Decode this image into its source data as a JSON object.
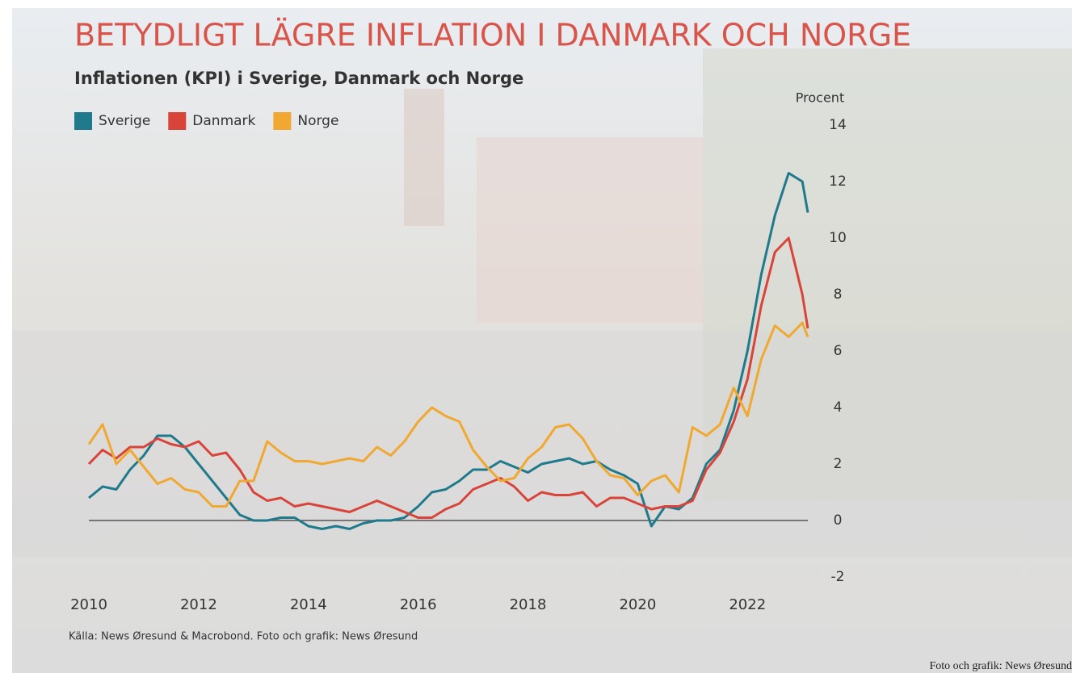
{
  "chart_data": {
    "type": "line",
    "title": "BETYDLIGT LÄGRE INFLATION I DANMARK OCH NORGE",
    "subtitle": "Inflationen (KPI) i Sverige, Danmark och Norge",
    "y_axis_label": "Procent",
    "source": "Källa: News Øresund & Macrobond. Foto och grafik: News Øresund",
    "credit": "Foto och grafik: News Øresund",
    "x": [
      2010,
      2010.25,
      2010.5,
      2010.75,
      2011,
      2011.25,
      2011.5,
      2011.75,
      2012,
      2012.25,
      2012.5,
      2012.75,
      2013,
      2013.25,
      2013.5,
      2013.75,
      2014,
      2014.25,
      2014.5,
      2014.75,
      2015,
      2015.25,
      2015.5,
      2015.75,
      2016,
      2016.25,
      2016.5,
      2016.75,
      2017,
      2017.25,
      2017.5,
      2017.75,
      2018,
      2018.25,
      2018.5,
      2018.75,
      2019,
      2019.25,
      2019.5,
      2019.75,
      2020,
      2020.25,
      2020.5,
      2020.75,
      2021,
      2021.25,
      2021.5,
      2021.75,
      2022,
      2022.25,
      2022.5,
      2022.75,
      2023,
      2023.1
    ],
    "series": [
      {
        "name": "Sverige",
        "color": "#1f7a8c",
        "values": [
          0.8,
          1.2,
          1.1,
          1.8,
          2.3,
          3.0,
          3.0,
          2.6,
          2.0,
          1.4,
          0.8,
          0.2,
          0.0,
          0.0,
          0.1,
          0.1,
          -0.2,
          -0.3,
          -0.2,
          -0.3,
          -0.1,
          0.0,
          0.0,
          0.1,
          0.5,
          1.0,
          1.1,
          1.4,
          1.8,
          1.8,
          2.1,
          1.9,
          1.7,
          2.0,
          2.1,
          2.2,
          2.0,
          2.1,
          1.8,
          1.6,
          1.3,
          -0.2,
          0.5,
          0.4,
          0.8,
          2.0,
          2.5,
          3.9,
          6.0,
          8.7,
          10.8,
          12.3,
          12.0,
          10.9
        ]
      },
      {
        "name": "Danmark",
        "color": "#d9443a",
        "values": [
          2.0,
          2.5,
          2.2,
          2.6,
          2.6,
          2.9,
          2.7,
          2.6,
          2.8,
          2.3,
          2.4,
          1.8,
          1.0,
          0.7,
          0.8,
          0.5,
          0.6,
          0.5,
          0.4,
          0.3,
          0.5,
          0.7,
          0.5,
          0.3,
          0.1,
          0.1,
          0.4,
          0.6,
          1.1,
          1.3,
          1.5,
          1.2,
          0.7,
          1.0,
          0.9,
          0.9,
          1.0,
          0.5,
          0.8,
          0.8,
          0.6,
          0.4,
          0.5,
          0.5,
          0.7,
          1.8,
          2.4,
          3.5,
          5.0,
          7.6,
          9.5,
          10.0,
          8.0,
          6.8
        ]
      },
      {
        "name": "Norge",
        "color": "#f0a830",
        "values": [
          2.7,
          3.4,
          2.0,
          2.5,
          1.9,
          1.3,
          1.5,
          1.1,
          1.0,
          0.5,
          0.5,
          1.4,
          1.4,
          2.8,
          2.4,
          2.1,
          2.1,
          2.0,
          2.1,
          2.2,
          2.1,
          2.6,
          2.3,
          2.8,
          3.5,
          4.0,
          3.7,
          3.5,
          2.5,
          1.9,
          1.4,
          1.5,
          2.2,
          2.6,
          3.3,
          3.4,
          2.9,
          2.1,
          1.6,
          1.5,
          0.9,
          1.4,
          1.6,
          1.0,
          3.3,
          3.0,
          3.4,
          4.7,
          3.7,
          5.7,
          6.9,
          6.5,
          7.0,
          6.5
        ]
      }
    ],
    "xlim": [
      2010,
      2023.1
    ],
    "xticks": [
      2010,
      2012,
      2014,
      2016,
      2018,
      2020,
      2022
    ],
    "ylim": [
      -2,
      14
    ],
    "yticks": [
      14,
      12,
      10,
      8,
      6,
      4,
      2,
      0,
      -2
    ],
    "grid": false,
    "legend": "top-left"
  }
}
